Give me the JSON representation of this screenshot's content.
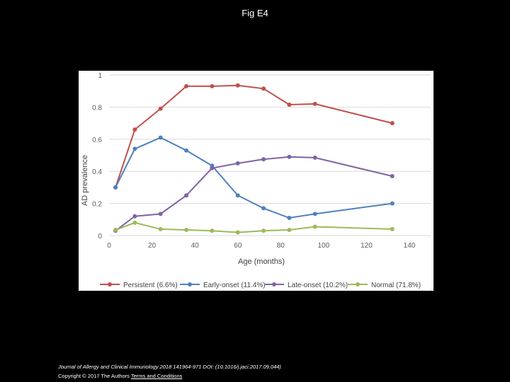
{
  "page": {
    "title": "Fig E4",
    "citation": "Journal of Allergy and Clinical Immunology 2018 141964-971 DOI: (10.1016/j.jaci.2017.09.044)",
    "copyright": "Copyright © 2017 The Authors",
    "terms_link": "Terms and Conditions"
  },
  "chart_data": {
    "type": "line",
    "xlabel": "Age (months)",
    "ylabel": "AD prevalence",
    "xlim": [
      0,
      140
    ],
    "ylim": [
      0,
      1
    ],
    "xticks": [
      0,
      20,
      40,
      60,
      80,
      100,
      120,
      140
    ],
    "yticks": [
      0,
      0.2,
      0.4,
      0.6,
      0.8,
      1
    ],
    "ytick_labels": [
      "0",
      "0.2",
      "0.4",
      "0.6",
      "0.8",
      "1"
    ],
    "grid": "horizontal",
    "legend": "bottom",
    "x": [
      3,
      12,
      24,
      36,
      48,
      60,
      72,
      84,
      96,
      132
    ],
    "series": [
      {
        "name": "Persistent (6.6%)",
        "color": "#c0504d",
        "values": [
          0.3,
          0.66,
          0.79,
          0.93,
          0.93,
          0.935,
          0.915,
          0.815,
          0.82,
          0.7
        ]
      },
      {
        "name": "Early-onset (11.4%)",
        "color": "#4f81bd",
        "values": [
          0.3,
          0.54,
          0.61,
          0.53,
          0.435,
          0.25,
          0.17,
          0.11,
          0.135,
          0.2
        ]
      },
      {
        "name": "Late-onset (10.2%)",
        "color": "#8064a2",
        "values": [
          0.03,
          0.12,
          0.135,
          0.25,
          0.42,
          0.45,
          0.475,
          0.49,
          0.485,
          0.37
        ]
      },
      {
        "name": "Normal (71.8%)",
        "color": "#9bbb59",
        "values": [
          0.035,
          0.08,
          0.04,
          0.035,
          0.03,
          0.02,
          0.03,
          0.035,
          0.055,
          0.04
        ]
      }
    ]
  }
}
